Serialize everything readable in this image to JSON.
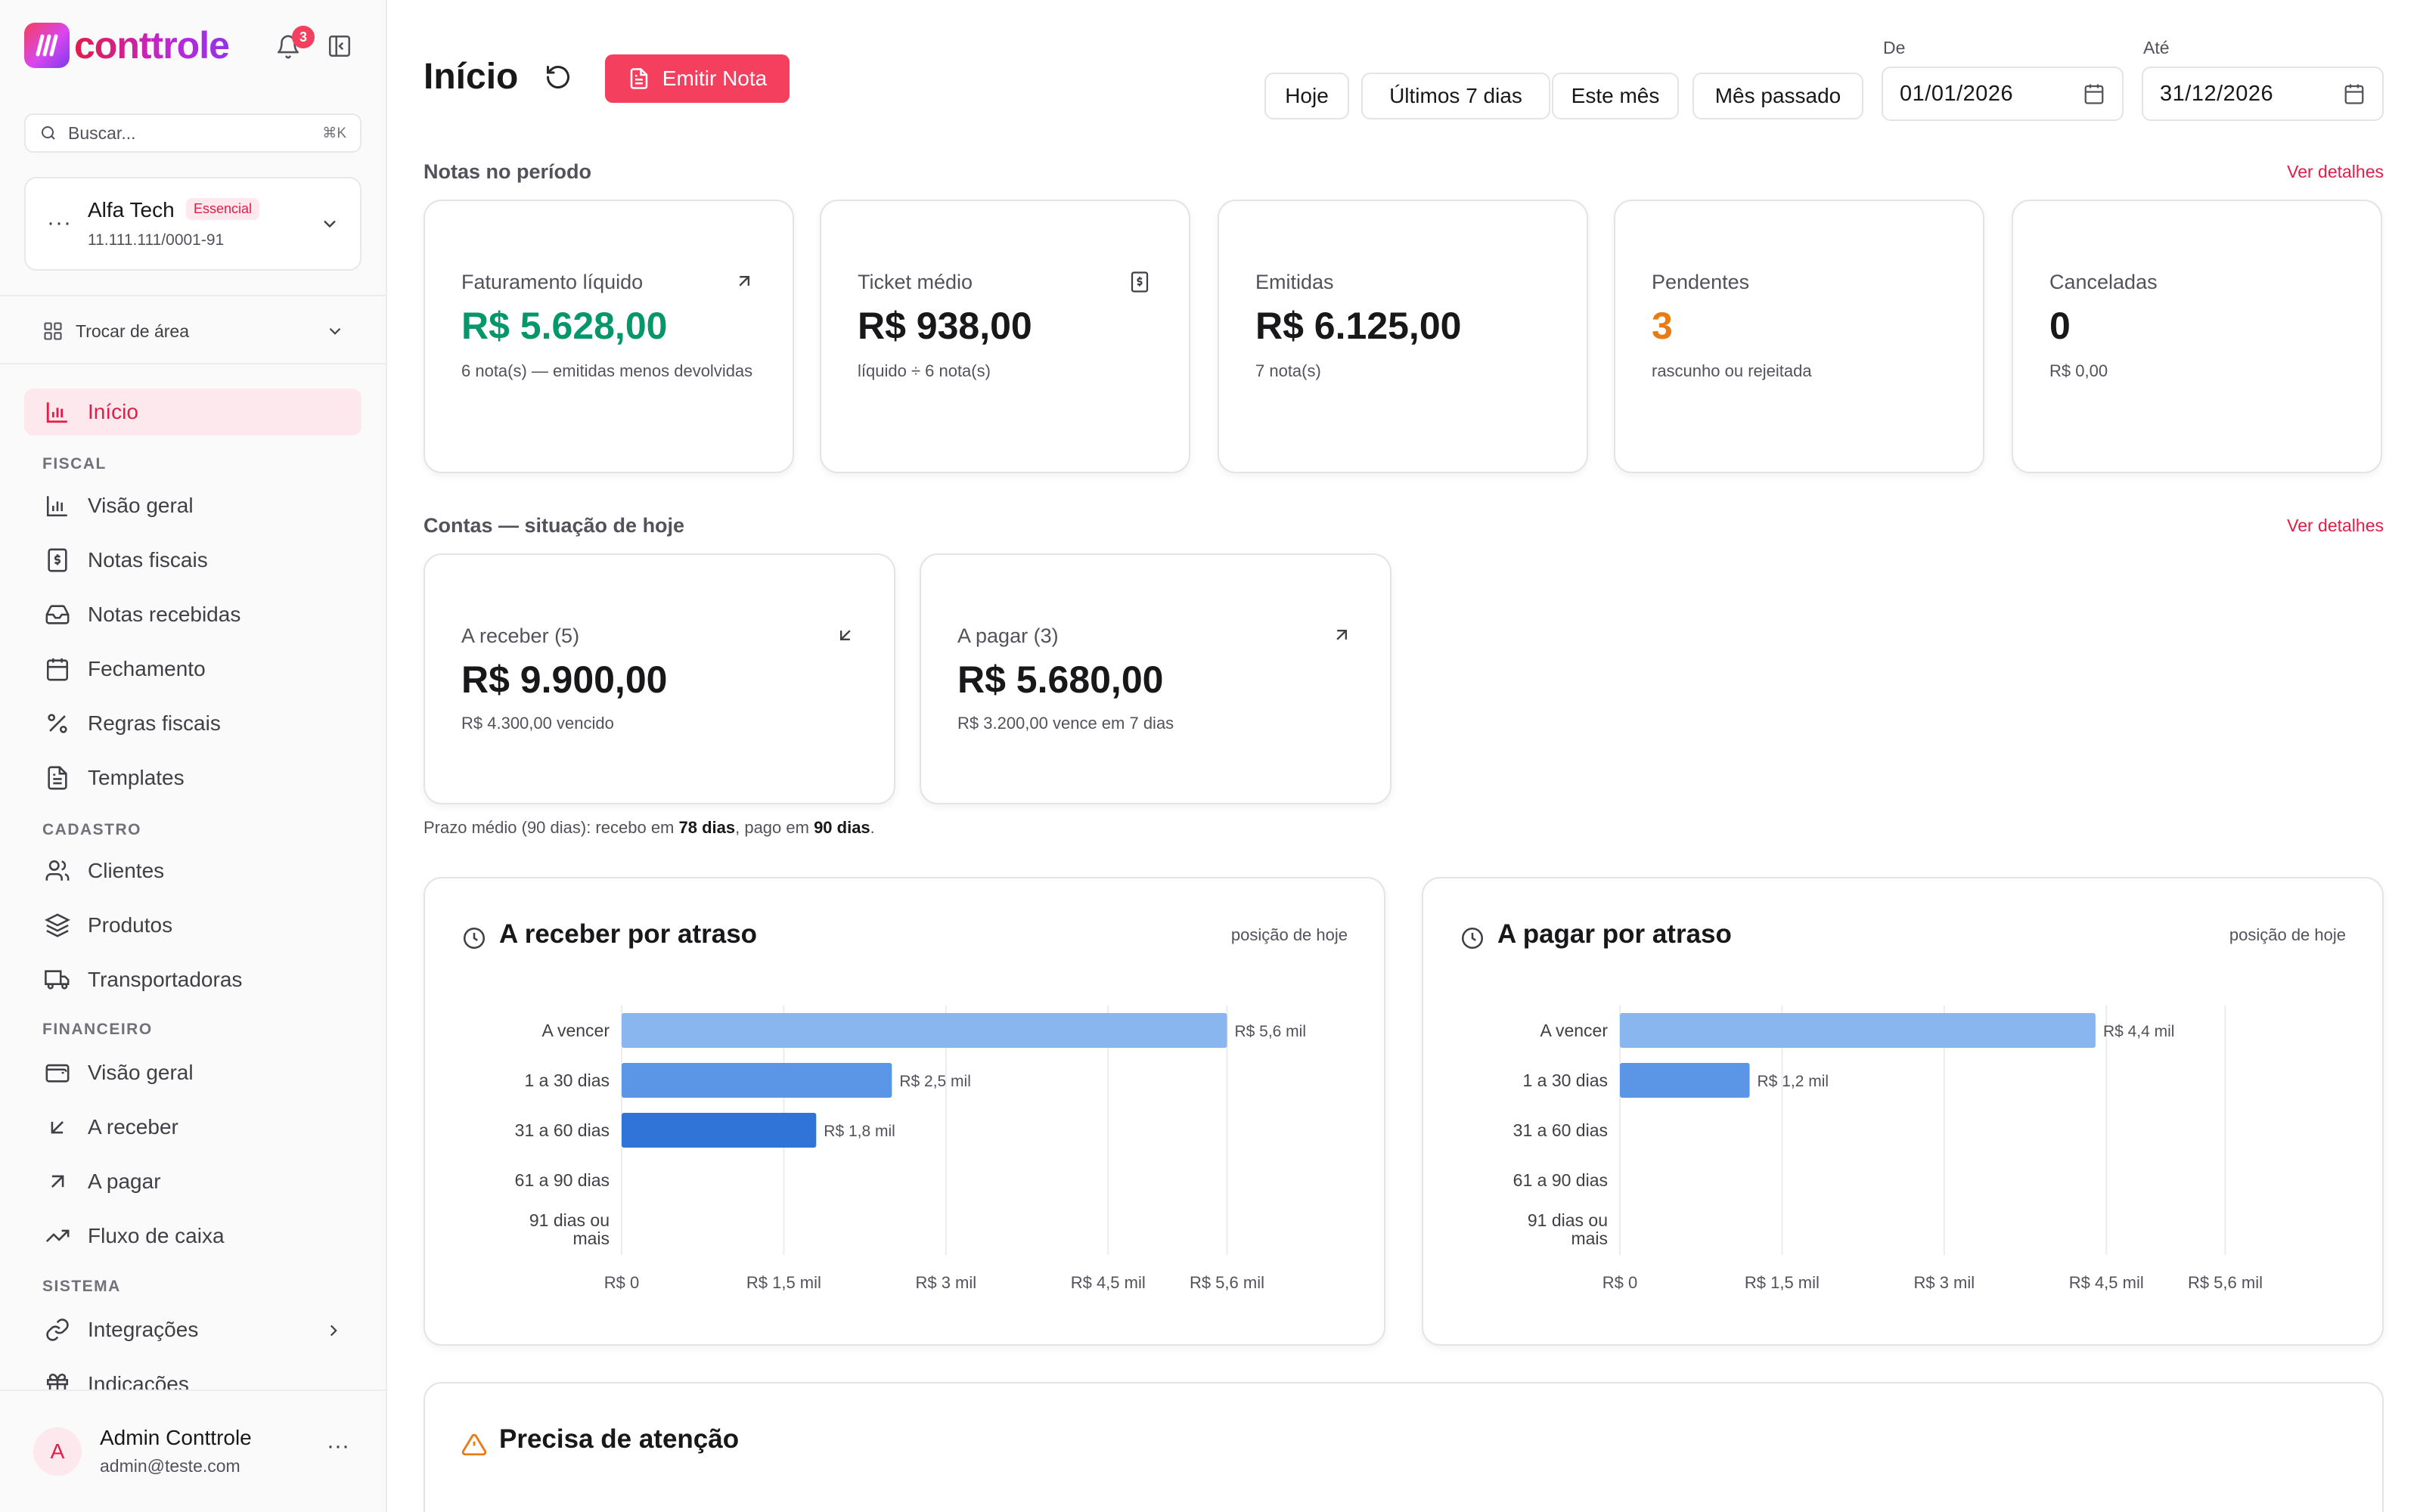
{
  "brand": {
    "name": "conttrole",
    "notifications": "3"
  },
  "search": {
    "placeholder": "Buscar...",
    "shortcut": "⌘K"
  },
  "company": {
    "name": "Alfa Tech",
    "plan": "Essencial",
    "cnpj": "11.111.111/0001-91"
  },
  "area_switch": {
    "label": "Trocar de área"
  },
  "nav": {
    "home": "Início",
    "sections": {
      "fiscal": "FISCAL",
      "cadastro": "CADASTRO",
      "financeiro": "FINANCEIRO",
      "sistema": "SISTEMA"
    },
    "fiscal": [
      "Visão geral",
      "Notas fiscais",
      "Notas recebidas",
      "Fechamento",
      "Regras fiscais",
      "Templates"
    ],
    "cadastro": [
      "Clientes",
      "Produtos",
      "Transportadoras"
    ],
    "financeiro": [
      "Visão geral",
      "A receber",
      "A pagar",
      "Fluxo de caixa"
    ],
    "sistema": [
      "Integrações",
      "Indicações"
    ]
  },
  "user": {
    "initial": "A",
    "name": "Admin Conttrole",
    "email": "admin@teste.com"
  },
  "header": {
    "title": "Início",
    "emit_label": "Emitir Nota",
    "ranges": [
      "Hoje",
      "Últimos 7 dias",
      "Este mês",
      "Mês passado"
    ],
    "from_label": "De",
    "from_value": "01/01/2026",
    "to_label": "Até",
    "to_value": "31/12/2026"
  },
  "notas": {
    "title": "Notas no período",
    "link": "Ver detalhes",
    "cards": [
      {
        "title": "Faturamento líquido",
        "value": "R$ 5.628,00",
        "sub": "6 nota(s) — emitidas menos devolvidas",
        "color": "#059669"
      },
      {
        "title": "Ticket médio",
        "value": "R$ 938,00",
        "sub": "líquido ÷ 6 nota(s)",
        "color": "#18181b"
      },
      {
        "title": "Emitidas",
        "value": "R$ 6.125,00",
        "sub": "7 nota(s)",
        "color": "#18181b"
      },
      {
        "title": "Pendentes",
        "value": "3",
        "sub": "rascunho ou rejeitada",
        "color": "#ea7a14"
      },
      {
        "title": "Canceladas",
        "value": "0",
        "sub": "R$ 0,00",
        "color": "#18181b"
      }
    ]
  },
  "contas": {
    "title": "Contas — situação de hoje",
    "link": "Ver detalhes",
    "receber": {
      "title": "A receber (5)",
      "value": "R$ 9.900,00",
      "sub": "R$ 4.300,00 vencido"
    },
    "pagar": {
      "title": "A pagar (3)",
      "value": "R$ 5.680,00",
      "sub": "R$ 3.200,00 vence em 7 dias"
    },
    "prazo_prefix": "Prazo médio (90 dias): recebo em ",
    "prazo_receber": "78 dias",
    "prazo_middle": ", pago em ",
    "prazo_pagar": "90 dias",
    "prazo_suffix": "."
  },
  "chart_data": [
    {
      "type": "bar",
      "orientation": "horizontal",
      "title": "A receber por atraso",
      "subtitle": "posição de hoje",
      "categories": [
        "A vencer",
        "1 a 30 dias",
        "31 a 60 dias",
        "61 a 90 dias",
        "91 dias ou mais"
      ],
      "values": [
        5600,
        2500,
        1800,
        0,
        0
      ],
      "value_labels": [
        "R$ 5,6 mil",
        "R$ 2,5 mil",
        "R$ 1,8 mil",
        "",
        ""
      ],
      "bar_colors": [
        "#8ab6f0",
        "#5b96e6",
        "#2f74d6",
        "#2f74d6",
        "#2f74d6"
      ],
      "xticks": [
        0,
        1500,
        3000,
        4500,
        5600
      ],
      "xtick_labels": [
        "R$ 0",
        "R$ 1,5 mil",
        "R$ 3 mil",
        "R$ 4,5 mil",
        "R$ 5,6 mil"
      ],
      "xlim": [
        0,
        6800
      ],
      "grid": true
    },
    {
      "type": "bar",
      "orientation": "horizontal",
      "title": "A pagar por atraso",
      "subtitle": "posição de hoje",
      "categories": [
        "A vencer",
        "1 a 30 dias",
        "31 a 60 dias",
        "61 a 90 dias",
        "91 dias ou mais"
      ],
      "values": [
        4400,
        1200,
        0,
        0,
        0
      ],
      "value_labels": [
        "R$ 4,4 mil",
        "R$ 1,2 mil",
        "",
        "",
        ""
      ],
      "bar_colors": [
        "#8ab6f0",
        "#5b96e6",
        "#2f74d6",
        "#2f74d6",
        "#2f74d6"
      ],
      "xticks": [
        0,
        1500,
        3000,
        4500,
        5600
      ],
      "xtick_labels": [
        "R$ 0",
        "R$ 1,5 mil",
        "R$ 3 mil",
        "R$ 4,5 mil",
        "R$ 5,6 mil"
      ],
      "xlim": [
        0,
        6800
      ],
      "grid": true
    }
  ],
  "attention": {
    "title": "Precisa de atenção"
  },
  "colors": {
    "accent": "#f43f5e",
    "accent_text": "#e11d48",
    "accent_bg": "#fde8ee"
  }
}
